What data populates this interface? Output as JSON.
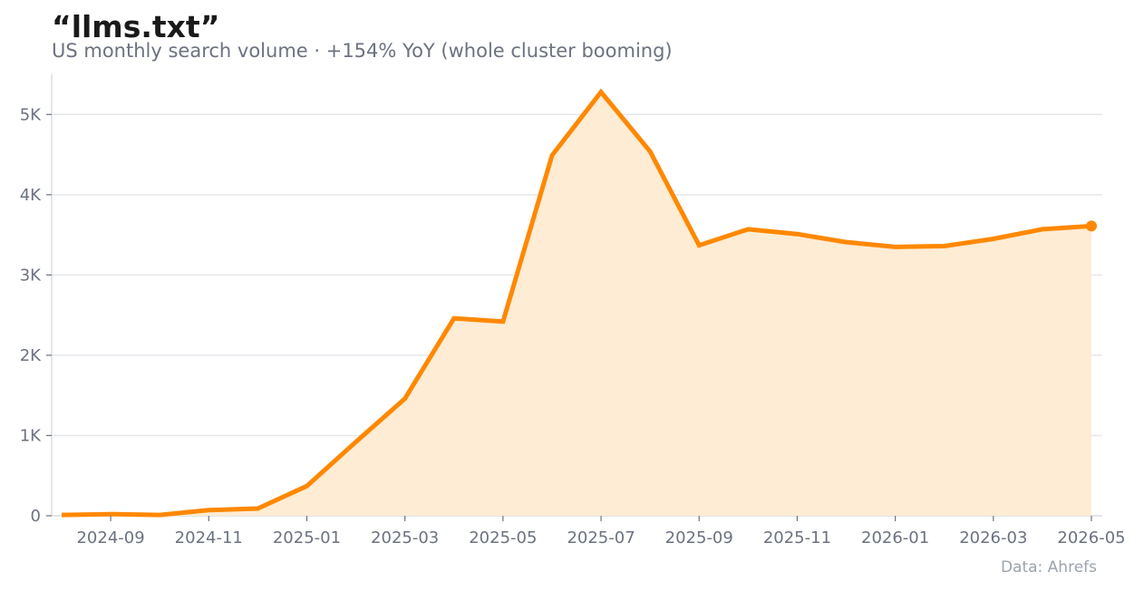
{
  "chart_data": {
    "type": "area",
    "title": "“llms.txt”",
    "subtitle": "US monthly search volume · +154% YoY (whole cluster booming)",
    "source": "Data: Ahrefs",
    "xlabel": "",
    "ylabel": "",
    "x": [
      "2024-08",
      "2024-09",
      "2024-10",
      "2024-11",
      "2024-12",
      "2025-01",
      "2025-02",
      "2025-03",
      "2025-04",
      "2025-05",
      "2025-06",
      "2025-07",
      "2025-08",
      "2025-09",
      "2025-10",
      "2025-11",
      "2025-12",
      "2026-01",
      "2026-02",
      "2026-03",
      "2026-04",
      "2026-05"
    ],
    "values": [
      10,
      20,
      10,
      70,
      90,
      370,
      920,
      1460,
      2460,
      2420,
      4490,
      5280,
      4540,
      3370,
      3570,
      3510,
      3410,
      3350,
      3360,
      3450,
      3570,
      3610
    ],
    "x_tick_labels": [
      "2024-09",
      "2024-11",
      "2025-01",
      "2025-03",
      "2025-05",
      "2025-07",
      "2025-09",
      "2025-11",
      "2026-01",
      "2026-03",
      "2026-05"
    ],
    "y_ticks": [
      0,
      1000,
      2000,
      3000,
      4000,
      5000
    ],
    "y_tick_labels": [
      "0",
      "1K",
      "2K",
      "3K",
      "4K",
      "5K"
    ],
    "xlim": [
      "2024-08",
      "2026-05"
    ],
    "ylim": [
      0,
      5500
    ],
    "grid": "horizontal",
    "legend": "none",
    "colors": {
      "line": "#ff8800",
      "fill": "#ffecd4",
      "grid": "#e5e7eb",
      "axis": "#d1d5db",
      "tick_text": "#6b7280"
    }
  }
}
